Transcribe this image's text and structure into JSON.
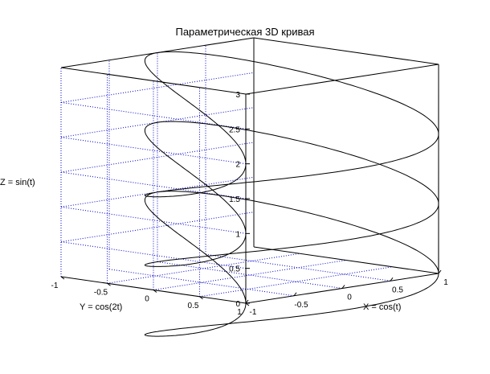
{
  "chart_data": {
    "type": "line3d",
    "title": "Параметрическая 3D кривая",
    "xlabel": "X = cos(t)",
    "ylabel": "Y = cos(2t)",
    "zlabel": "Z = sin(t)",
    "xlim": [
      -1,
      1
    ],
    "ylim": [
      -1,
      1
    ],
    "zlim": [
      0,
      3
    ],
    "grid": true,
    "x_ticks": [
      "-1",
      "-0.5",
      "0",
      "0.5",
      "1"
    ],
    "y_ticks": [
      "-1",
      "-0.5",
      "0",
      "0.5",
      "1"
    ],
    "z_ticks": [
      "0",
      "0.5",
      "1",
      "1.5",
      "2",
      "2.5",
      "3"
    ],
    "series": [
      {
        "x": "cos(t)",
        "y": "cos(2t)",
        "z": "sin(t)",
        "t_start": 0,
        "t_end": 18.85,
        "z_offset_per_turn": 1
      }
    ]
  },
  "colors": {
    "axes": "#000000",
    "grid": "#0000cc",
    "line": "#000000",
    "background": "#ffffff"
  }
}
